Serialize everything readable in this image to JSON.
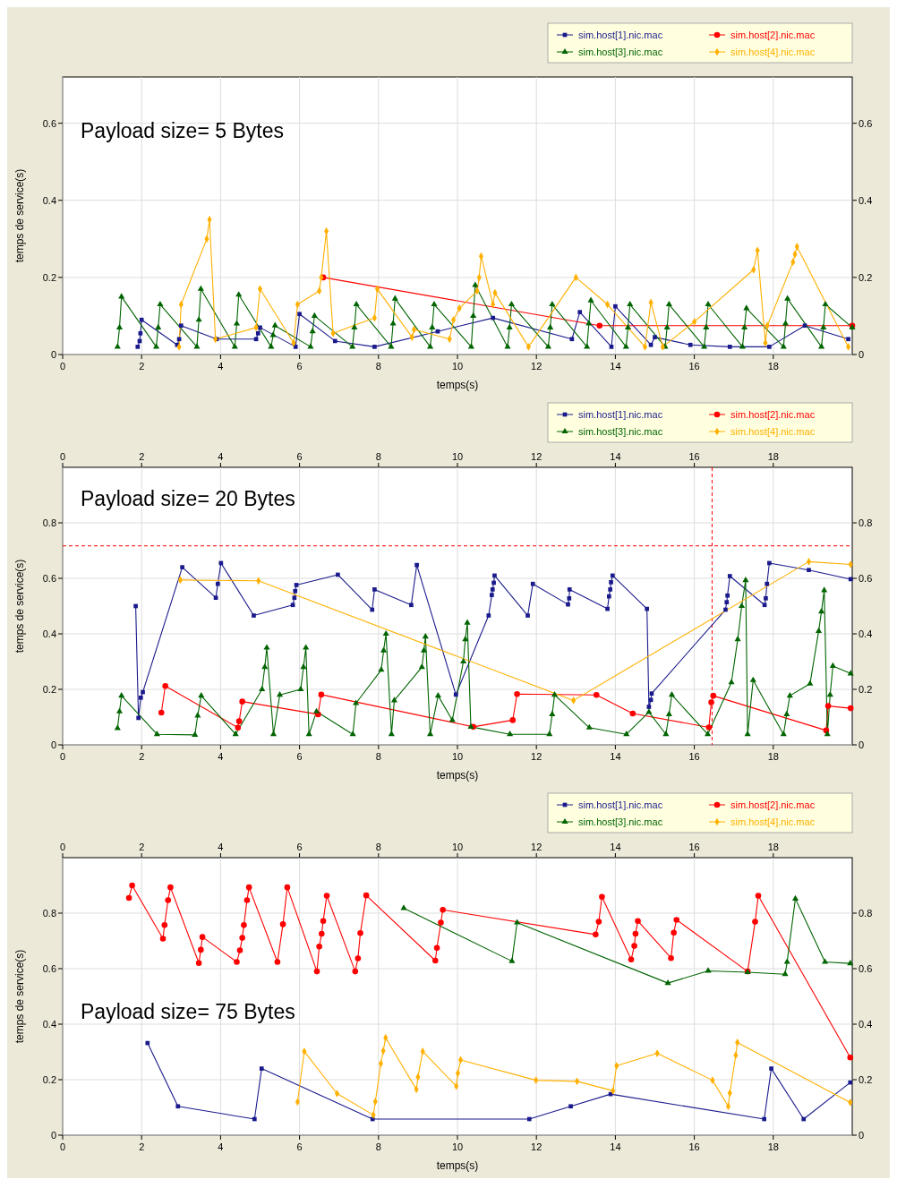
{
  "chart_data": [
    {
      "type": "line",
      "title": "Payload size= 5 Bytes",
      "xlabel": "temps(s)",
      "ylabel": "temps de service(s)",
      "xlim": [
        0,
        20
      ],
      "xticks": [
        0,
        2,
        4,
        6,
        8,
        10,
        12,
        14,
        16,
        18
      ],
      "ylim": [
        0,
        0.72
      ],
      "yticks": [
        0,
        0.2,
        0.4,
        0.6
      ],
      "y2lim": [
        0,
        0.72
      ],
      "y2ticks": [
        0,
        0.2,
        0.4,
        0.6
      ],
      "grid": true,
      "legend": "top right",
      "series": [
        {
          "name": "sim.host[1].nic.mac",
          "color": "#1a1a8c",
          "marker": "square",
          "x": [
            1.9,
            1.95,
            1.97,
            2.0,
            2.9,
            2.95,
            3.0,
            3.9,
            4.9,
            4.95,
            5.0,
            5.9,
            6.0,
            6.9,
            7.9,
            9.5,
            10.9,
            12.9,
            13.1,
            13.9,
            14.0,
            14.9,
            15.0,
            15.9,
            16.9,
            17.9,
            18.8,
            19.9
          ],
          "values": [
            0.02,
            0.035,
            0.055,
            0.09,
            0.025,
            0.04,
            0.075,
            0.04,
            0.04,
            0.055,
            0.07,
            0.02,
            0.105,
            0.035,
            0.02,
            0.06,
            0.095,
            0.04,
            0.11,
            0.02,
            0.125,
            0.025,
            0.045,
            0.025,
            0.02,
            0.02,
            0.075,
            0.04
          ]
        },
        {
          "name": "sim.host[2].nic.mac",
          "color": "#ff0000",
          "marker": "circle",
          "x": [
            6.6,
            13.6,
            20
          ],
          "values": [
            0.2,
            0.075,
            0.075
          ]
        },
        {
          "name": "sim.host[3].nic.mac",
          "color": "#006400",
          "marker": "triangle",
          "x": [
            1.39,
            1.44,
            1.49,
            2.37,
            2.42,
            2.47,
            3.4,
            3.45,
            3.5,
            4.36,
            4.41,
            4.46,
            5.28,
            5.33,
            5.38,
            6.28,
            6.33,
            6.38,
            7.34,
            7.39,
            7.44,
            8.32,
            8.37,
            8.42,
            9.31,
            9.36,
            9.41,
            10.35,
            10.4,
            10.45,
            11.27,
            11.32,
            11.37,
            12.3,
            12.35,
            12.4,
            13.28,
            13.33,
            13.38,
            14.27,
            14.32,
            14.37,
            15.26,
            15.31,
            15.36,
            16.25,
            16.3,
            16.35,
            17.22,
            17.27,
            17.32,
            18.26,
            18.31,
            18.36,
            19.22,
            19.27,
            19.32,
            20
          ],
          "values": [
            0.02,
            0.07,
            0.15,
            0.02,
            0.07,
            0.13,
            0.02,
            0.09,
            0.17,
            0.02,
            0.08,
            0.155,
            0.02,
            0.05,
            0.075,
            0.02,
            0.06,
            0.1,
            0.02,
            0.07,
            0.13,
            0.02,
            0.08,
            0.145,
            0.02,
            0.07,
            0.13,
            0.02,
            0.1,
            0.18,
            0.02,
            0.07,
            0.13,
            0.02,
            0.07,
            0.13,
            0.02,
            0.08,
            0.14,
            0.02,
            0.07,
            0.13,
            0.02,
            0.07,
            0.13,
            0.02,
            0.07,
            0.13,
            0.02,
            0.07,
            0.12,
            0.02,
            0.08,
            0.145,
            0.02,
            0.07,
            0.13,
            0.07
          ]
        },
        {
          "name": "sim.host[4].nic.mac",
          "color": "#ffb000",
          "marker": "diamond",
          "x": [
            2.95,
            3.0,
            3.65,
            3.72,
            3.87,
            4.9,
            5.0,
            5.85,
            5.95,
            6.5,
            6.55,
            6.68,
            6.85,
            7.9,
            7.97,
            8.85,
            8.9,
            9.8,
            9.9,
            10.05,
            10.5,
            10.55,
            10.6,
            10.9,
            10.95,
            11.8,
            13.0,
            13.8,
            14.75,
            14.9,
            15.2,
            16.0,
            17.5,
            17.6,
            17.8,
            17.85,
            18.5,
            18.55,
            18.6,
            19.9
          ],
          "values": [
            0.02,
            0.13,
            0.3,
            0.35,
            0.04,
            0.07,
            0.17,
            0.03,
            0.13,
            0.165,
            0.2,
            0.32,
            0.055,
            0.095,
            0.17,
            0.045,
            0.065,
            0.04,
            0.09,
            0.12,
            0.165,
            0.2,
            0.255,
            0.13,
            0.16,
            0.02,
            0.2,
            0.13,
            0.02,
            0.135,
            0.02,
            0.085,
            0.22,
            0.27,
            0.03,
            0.075,
            0.24,
            0.26,
            0.28,
            0.02
          ]
        }
      ]
    },
    {
      "type": "line",
      "title": "Payload size= 20 Bytes",
      "xlabel": "temps(s)",
      "ylabel": "temps de service(s)",
      "xlim": [
        0,
        20
      ],
      "xticks": [
        0,
        2,
        4,
        6,
        8,
        10,
        12,
        14,
        16,
        18
      ],
      "x2lim": [
        0,
        20
      ],
      "x2ticks": [
        0,
        2,
        4,
        6,
        8,
        10,
        12,
        14,
        16,
        18
      ],
      "ylim": [
        0,
        1.0
      ],
      "yticks": [
        0,
        0.2,
        0.4,
        0.6,
        0.8
      ],
      "y2lim": [
        0,
        1.0
      ],
      "y2ticks": [
        0,
        0.2,
        0.4,
        0.6,
        0.8
      ],
      "grid": true,
      "legend": "top right",
      "ref_lines": [
        {
          "axis": "y",
          "value": 0.717,
          "color": "#ff0000",
          "line_style": "dashed"
        },
        {
          "axis": "x",
          "value": 16.45,
          "color": "#ff0000",
          "line_style": "dashed"
        }
      ],
      "series": [
        {
          "name": "sim.host[1].nic.mac",
          "color": "#1a1a8c",
          "marker": "square",
          "x": [
            1.85,
            1.92,
            1.98,
            2.03,
            3.03,
            3.88,
            3.93,
            4.01,
            4.84,
            5.83,
            5.87,
            5.89,
            5.92,
            6.97,
            7.84,
            7.9,
            8.83,
            8.97,
            9.96,
            10.79,
            10.87,
            10.89,
            10.92,
            10.94,
            11.78,
            11.91,
            12.8,
            12.83,
            12.84,
            13.8,
            13.84,
            13.87,
            13.89,
            13.93,
            14.8,
            14.85,
            14.9,
            14.92,
            16.79,
            16.82,
            16.84,
            16.9,
            17.78,
            17.81,
            17.84,
            17.9,
            18.9,
            19.96
          ],
          "values": [
            0.5,
            0.097,
            0.17,
            0.19,
            0.64,
            0.53,
            0.58,
            0.655,
            0.466,
            0.504,
            0.53,
            0.554,
            0.576,
            0.613,
            0.487,
            0.56,
            0.504,
            0.648,
            0.181,
            0.466,
            0.54,
            0.56,
            0.584,
            0.61,
            0.466,
            0.58,
            0.506,
            0.528,
            0.56,
            0.49,
            0.535,
            0.56,
            0.586,
            0.61,
            0.49,
            0.137,
            0.162,
            0.185,
            0.487,
            0.514,
            0.538,
            0.608,
            0.504,
            0.528,
            0.58,
            0.655,
            0.63,
            0.597
          ]
        },
        {
          "name": "sim.host[2].nic.mac",
          "color": "#ff0000",
          "marker": "circle",
          "x": [
            2.5,
            2.6,
            4.44,
            4.47,
            4.55,
            6.47,
            6.55,
            10.4,
            11.4,
            11.51,
            13.52,
            14.44,
            16.37,
            16.43,
            16.48,
            19.34,
            19.39,
            19.96
          ],
          "values": [
            0.116,
            0.212,
            0.062,
            0.085,
            0.156,
            0.11,
            0.181,
            0.065,
            0.089,
            0.183,
            0.18,
            0.113,
            0.063,
            0.153,
            0.177,
            0.052,
            0.14,
            0.132
          ]
        },
        {
          "name": "sim.host[3].nic.mac",
          "color": "#006400",
          "marker": "triangle",
          "x": [
            1.39,
            1.44,
            1.49,
            2.39,
            3.35,
            3.42,
            3.51,
            4.38,
            5.05,
            5.12,
            5.17,
            5.34,
            5.5,
            6.03,
            6.1,
            6.16,
            6.24,
            6.43,
            7.35,
            7.43,
            8.07,
            8.13,
            8.19,
            8.33,
            8.4,
            9.1,
            9.15,
            9.19,
            9.31,
            9.51,
            9.87,
            10.15,
            10.2,
            10.25,
            10.34,
            11.33,
            12.33,
            12.4,
            12.46,
            13.34,
            14.28,
            14.85,
            15.28,
            15.36,
            15.43,
            16.34,
            16.94,
            17.1,
            17.2,
            17.3,
            17.35,
            17.49,
            18.26,
            18.34,
            18.42,
            18.93,
            19.15,
            19.22,
            19.29,
            19.37,
            19.44,
            19.51,
            19.96
          ],
          "values": [
            0.06,
            0.12,
            0.177,
            0.038,
            0.036,
            0.105,
            0.177,
            0.038,
            0.2,
            0.28,
            0.35,
            0.038,
            0.18,
            0.2,
            0.28,
            0.35,
            0.038,
            0.12,
            0.038,
            0.15,
            0.27,
            0.34,
            0.4,
            0.038,
            0.16,
            0.28,
            0.34,
            0.39,
            0.038,
            0.177,
            0.089,
            0.3,
            0.38,
            0.44,
            0.065,
            0.038,
            0.038,
            0.11,
            0.18,
            0.062,
            0.038,
            0.118,
            0.038,
            0.11,
            0.18,
            0.038,
            0.225,
            0.38,
            0.5,
            0.593,
            0.038,
            0.233,
            0.038,
            0.11,
            0.177,
            0.22,
            0.41,
            0.48,
            0.557,
            0.038,
            0.18,
            0.284,
            0.257
          ]
        },
        {
          "name": "sim.host[4].nic.mac",
          "color": "#ffb000",
          "marker": "diamond",
          "x": [
            2.98,
            4.96,
            12.94,
            18.9,
            19.96
          ],
          "values": [
            0.594,
            0.591,
            0.16,
            0.66,
            0.65
          ]
        }
      ]
    },
    {
      "type": "line",
      "title": "Payload size= 75 Bytes",
      "xlabel": "temps(s)",
      "ylabel": "temps de service(s)",
      "xlim": [
        0,
        20
      ],
      "xticks": [
        0,
        2,
        4,
        6,
        8,
        10,
        12,
        14,
        16,
        18
      ],
      "x2lim": [
        0,
        20
      ],
      "x2ticks": [
        0,
        2,
        4,
        6,
        8,
        10,
        12,
        14,
        16,
        18
      ],
      "ylim": [
        0,
        1.0
      ],
      "yticks": [
        0,
        0.2,
        0.4,
        0.6,
        0.8
      ],
      "y2lim": [
        0,
        1.0
      ],
      "y2ticks": [
        0,
        0.2,
        0.4,
        0.6,
        0.8
      ],
      "grid": true,
      "legend": "top right",
      "series": [
        {
          "name": "sim.host[1].nic.mac",
          "color": "#1a1a8c",
          "marker": "square",
          "x": [
            2.15,
            2.92,
            4.86,
            5.04,
            7.85,
            11.82,
            12.87,
            13.88,
            17.77,
            17.95,
            18.77,
            19.95
          ],
          "values": [
            0.332,
            0.104,
            0.058,
            0.24,
            0.058,
            0.058,
            0.104,
            0.148,
            0.058,
            0.24,
            0.058,
            0.19
          ]
        },
        {
          "name": "sim.host[2].nic.mac",
          "color": "#ff0000",
          "marker": "circle",
          "x": [
            1.68,
            1.76,
            2.54,
            2.58,
            2.67,
            2.73,
            3.45,
            3.5,
            3.54,
            4.41,
            4.49,
            4.55,
            4.59,
            4.67,
            4.72,
            5.44,
            5.58,
            5.69,
            6.44,
            6.5,
            6.56,
            6.6,
            6.69,
            7.41,
            7.48,
            7.54,
            7.69,
            9.44,
            9.48,
            9.58,
            9.63,
            13.5,
            13.58,
            13.66,
            14.4,
            14.48,
            14.51,
            14.57,
            15.41,
            15.48,
            15.55,
            17.35,
            17.54,
            17.62,
            19.95
          ],
          "values": [
            0.855,
            0.9,
            0.708,
            0.757,
            0.847,
            0.893,
            0.62,
            0.668,
            0.714,
            0.624,
            0.666,
            0.711,
            0.757,
            0.847,
            0.893,
            0.624,
            0.76,
            0.893,
            0.59,
            0.68,
            0.726,
            0.772,
            0.863,
            0.59,
            0.637,
            0.728,
            0.864,
            0.629,
            0.675,
            0.766,
            0.812,
            0.723,
            0.769,
            0.859,
            0.633,
            0.682,
            0.726,
            0.772,
            0.638,
            0.73,
            0.776,
            0.59,
            0.769,
            0.863,
            0.28
          ]
        },
        {
          "name": "sim.host[3].nic.mac",
          "color": "#006400",
          "marker": "triangle",
          "x": [
            8.64,
            11.38,
            11.51,
            15.33,
            16.35,
            17.35,
            18.3,
            18.35,
            18.56,
            19.31,
            19.95
          ],
          "values": [
            0.818,
            0.627,
            0.766,
            0.548,
            0.592,
            0.587,
            0.58,
            0.624,
            0.852,
            0.624,
            0.619
          ]
        },
        {
          "name": "sim.host[4].nic.mac",
          "color": "#ffb000",
          "marker": "diamond",
          "x": [
            5.95,
            6.12,
            6.95,
            7.87,
            7.92,
            8.06,
            8.12,
            8.18,
            8.96,
            9.0,
            9.12,
            9.97,
            10.01,
            10.08,
            11.99,
            13.03,
            13.94,
            14.03,
            15.06,
            16.46,
            16.86,
            16.9,
            17.05,
            17.09,
            19.95
          ],
          "values": [
            0.12,
            0.302,
            0.15,
            0.073,
            0.121,
            0.258,
            0.304,
            0.351,
            0.165,
            0.21,
            0.302,
            0.177,
            0.223,
            0.271,
            0.198,
            0.194,
            0.16,
            0.25,
            0.295,
            0.198,
            0.104,
            0.152,
            0.288,
            0.334,
            0.118
          ]
        }
      ]
    }
  ]
}
